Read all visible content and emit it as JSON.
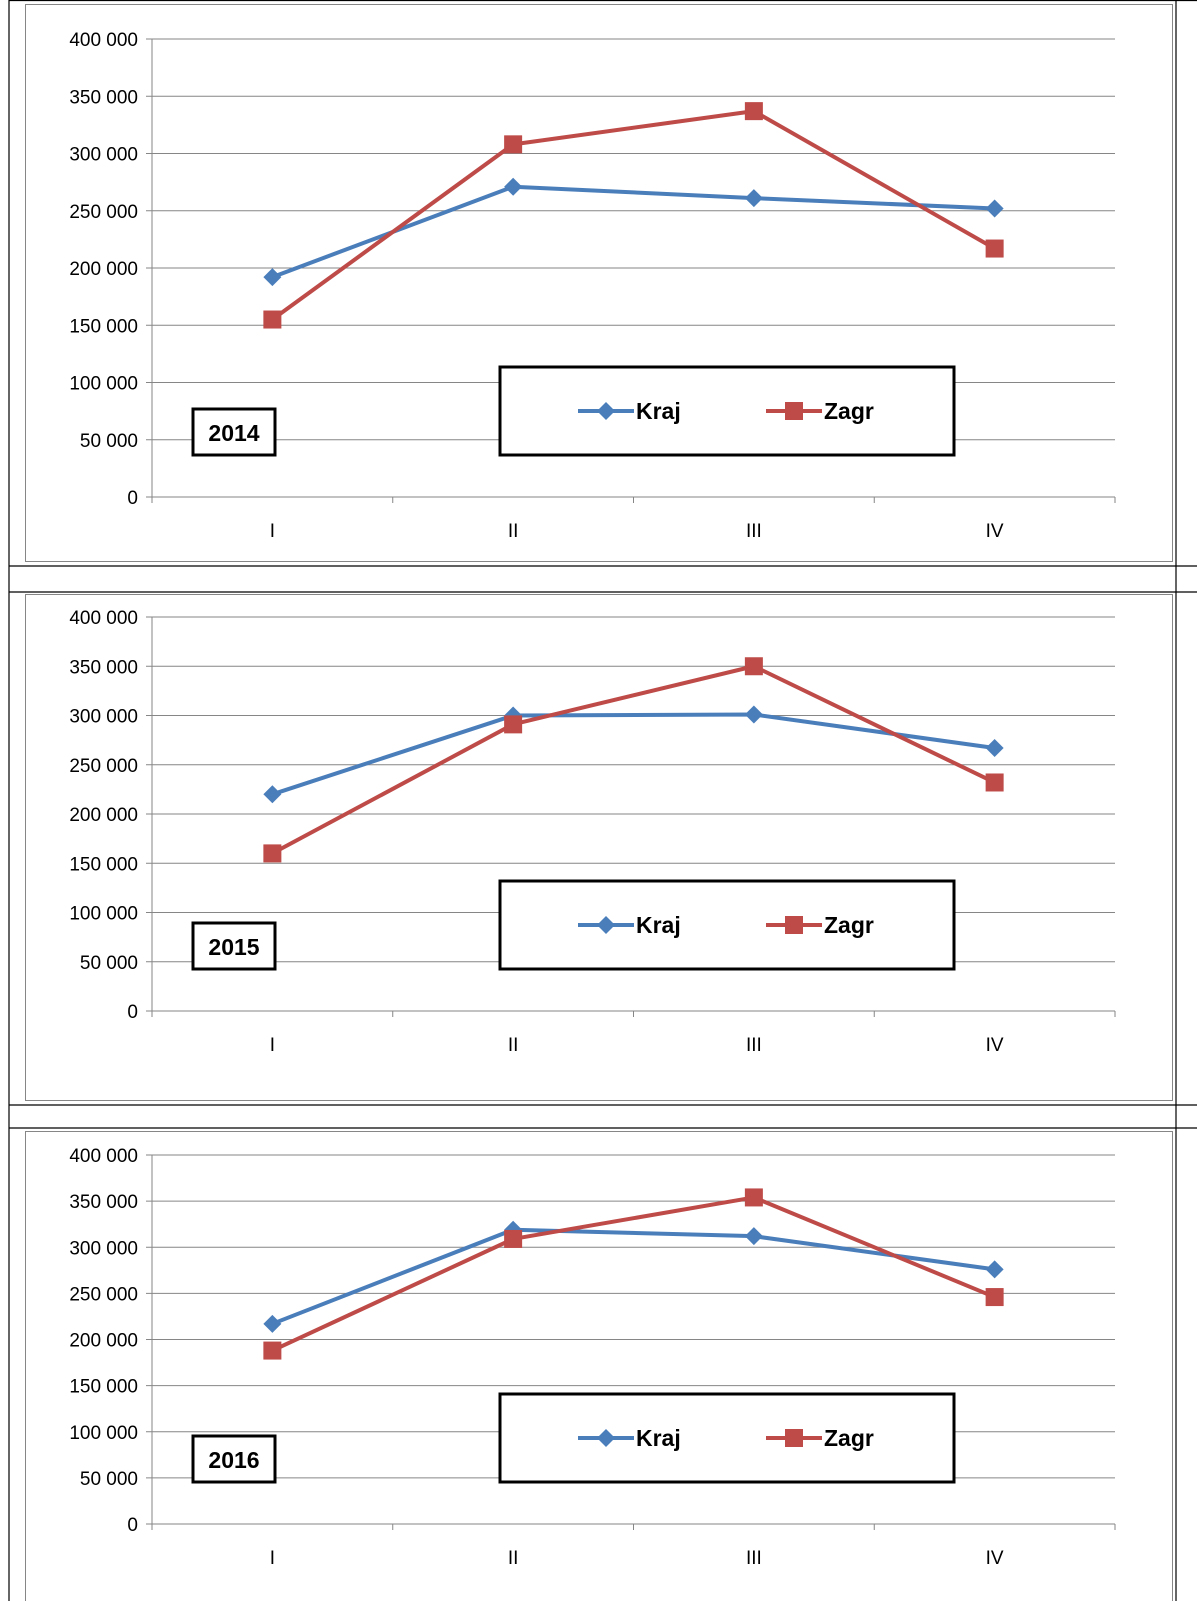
{
  "chart_data": [
    {
      "type": "line",
      "year_label": "2014",
      "categories": [
        "I",
        "II",
        "III",
        "IV"
      ],
      "ylim": [
        0,
        400000
      ],
      "yticks": [
        "0",
        "50 000",
        "100 000",
        "150 000",
        "200 000",
        "250 000",
        "300 000",
        "350 000",
        "400 000"
      ],
      "grid": true,
      "legend": "bottom-center",
      "series": [
        {
          "name": "Kraj",
          "color": "#4a7ebb",
          "marker": "diamond",
          "values": [
            192000,
            271000,
            261000,
            252000
          ]
        },
        {
          "name": "Zagr",
          "color": "#be4b48",
          "marker": "square",
          "values": [
            155000,
            308000,
            337000,
            217000
          ]
        }
      ]
    },
    {
      "type": "line",
      "year_label": "2015",
      "categories": [
        "I",
        "II",
        "III",
        "IV"
      ],
      "ylim": [
        0,
        400000
      ],
      "yticks": [
        "0",
        "50 000",
        "100 000",
        "150 000",
        "200 000",
        "250 000",
        "300 000",
        "350 000",
        "400 000"
      ],
      "grid": true,
      "legend": "bottom-center",
      "series": [
        {
          "name": "Kraj",
          "color": "#4a7ebb",
          "marker": "diamond",
          "values": [
            220000,
            300000,
            301000,
            267000
          ]
        },
        {
          "name": "Zagr",
          "color": "#be4b48",
          "marker": "square",
          "values": [
            160000,
            291000,
            350000,
            232000
          ]
        }
      ]
    },
    {
      "type": "line",
      "year_label": "2016",
      "categories": [
        "I",
        "II",
        "III",
        "IV"
      ],
      "ylim": [
        0,
        400000
      ],
      "yticks": [
        "0",
        "50 000",
        "100 000",
        "150 000",
        "200 000",
        "250 000",
        "300 000",
        "350 000",
        "400 000"
      ],
      "grid": true,
      "legend": "bottom-center",
      "series": [
        {
          "name": "Kraj",
          "color": "#4a7ebb",
          "marker": "diamond",
          "values": [
            217000,
            319000,
            312000,
            276000
          ]
        },
        {
          "name": "Zagr",
          "color": "#be4b48",
          "marker": "square",
          "values": [
            188000,
            309000,
            354000,
            246000
          ]
        }
      ]
    }
  ]
}
